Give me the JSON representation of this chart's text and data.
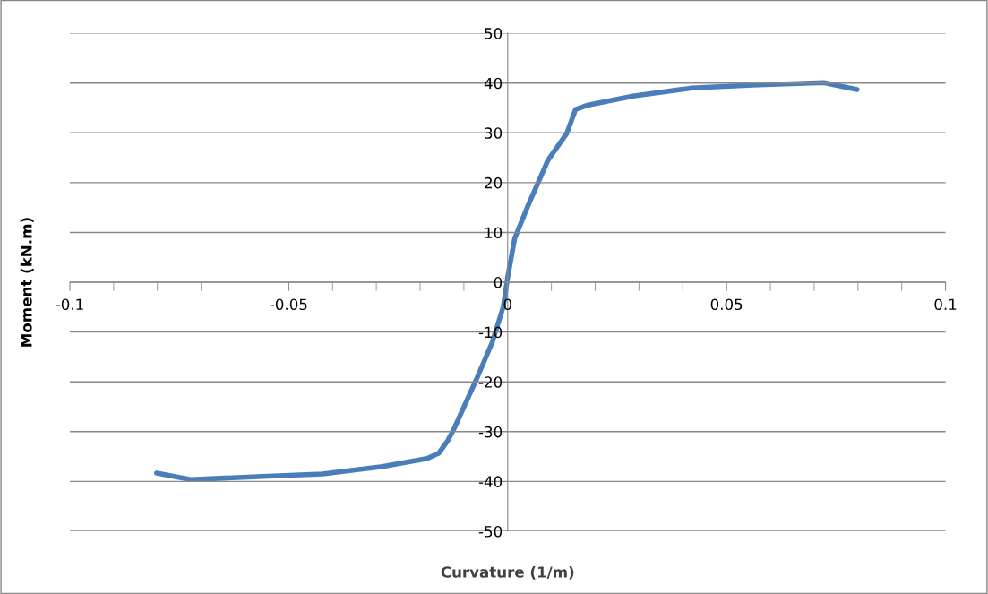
{
  "chart_data": {
    "type": "line",
    "xlabel": "Curvature (1/m)",
    "ylabel": "Moment (kN.m)",
    "x": [
      -0.0802,
      -0.0724,
      -0.056,
      -0.0423,
      -0.0286,
      -0.0184,
      -0.0157,
      -0.0137,
      -0.0123,
      -0.007,
      -0.0035,
      -0.001,
      0,
      0.0016,
      0.0047,
      0.0074,
      0.0092,
      0.0135,
      0.0155,
      0.0184,
      0.0286,
      0.0421,
      0.0558,
      0.0722,
      0.0798
    ],
    "series": [
      {
        "color": "#4a7ebb",
        "values": [
          -38.3,
          -39.6,
          -39.0,
          -38.5,
          -37.0,
          -35.4,
          -34.3,
          -31.8,
          -29.5,
          -19.2,
          -12,
          -4.9,
          1,
          8.8,
          15.5,
          20.9,
          24.5,
          29.9,
          34.7,
          35.6,
          37.4,
          39.0,
          39.6,
          40.1,
          38.7
        ]
      }
    ],
    "xlim": [
      -0.1,
      0.1
    ],
    "xticks": [
      {
        "value": -0.1,
        "label": "-0.1"
      },
      {
        "value": -0.09,
        "label": null
      },
      {
        "value": -0.08,
        "label": null
      },
      {
        "value": -0.07,
        "label": null
      },
      {
        "value": -0.06,
        "label": null
      },
      {
        "value": -0.05,
        "label": "-0.05"
      },
      {
        "value": -0.04,
        "label": null
      },
      {
        "value": -0.03,
        "label": null
      },
      {
        "value": -0.02,
        "label": null
      },
      {
        "value": -0.01,
        "label": null
      },
      0,
      {
        "value": 0.01,
        "label": null
      },
      {
        "value": 0.02,
        "label": null
      },
      {
        "value": 0.03,
        "label": null
      },
      {
        "value": 0.04,
        "label": null
      },
      0.05,
      {
        "value": 0.06,
        "label": null
      },
      {
        "value": 0.07,
        "label": null
      },
      {
        "value": 0.08,
        "label": null
      },
      {
        "value": 0.09,
        "label": null
      },
      0.1
    ],
    "ylim": [
      -50,
      50
    ],
    "yticks": [
      -50,
      -40,
      -30,
      -20,
      -10,
      0,
      10,
      20,
      30,
      40,
      50
    ],
    "grid": "y",
    "marker": "none",
    "line_style": "solid"
  }
}
